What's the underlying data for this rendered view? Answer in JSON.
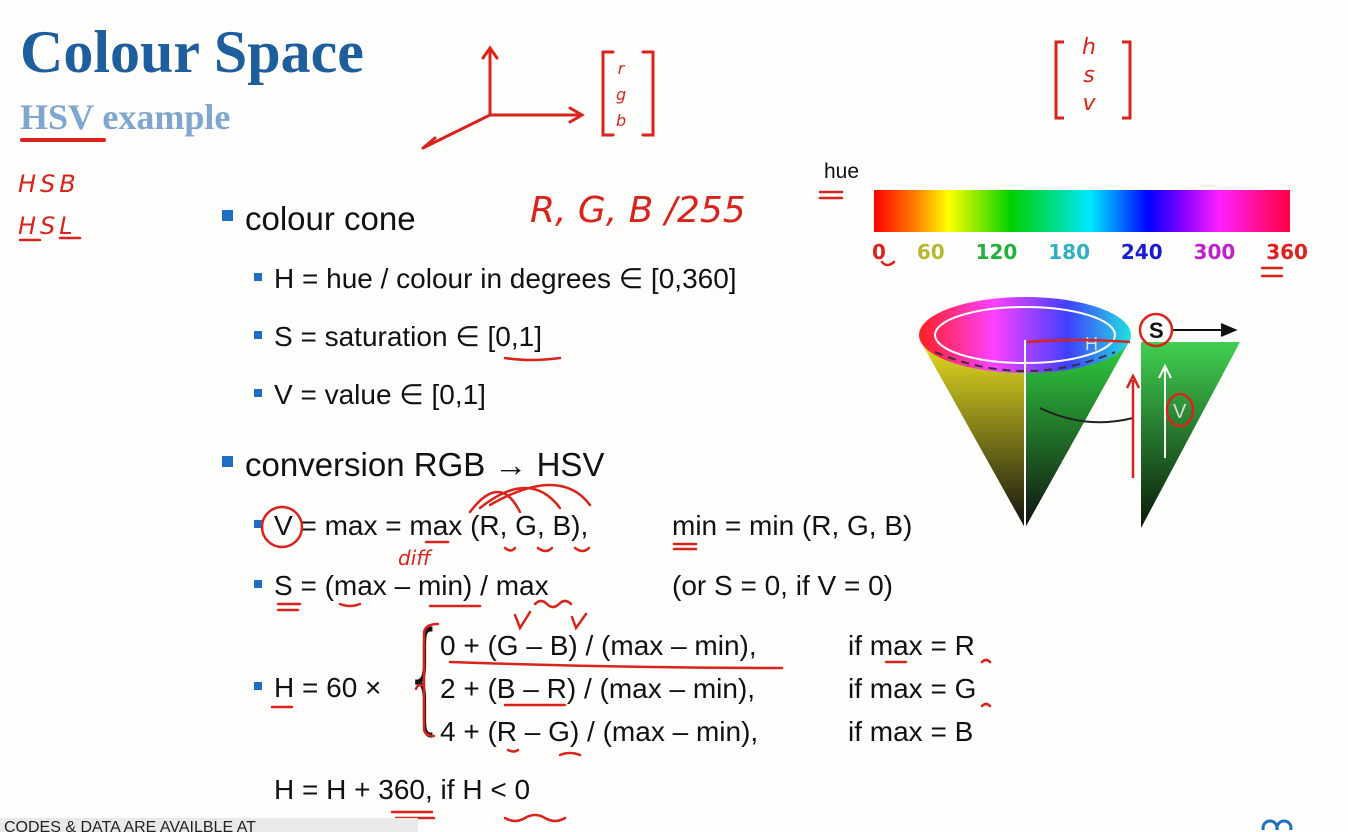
{
  "slide": {
    "title": "Colour Space",
    "subtitle": "HSV example",
    "bullets": {
      "cone": "colour cone",
      "h": "H = hue / colour in degrees ∈ [0,360]",
      "s": "S = saturation ∈ [0,1]",
      "v": "V = value ∈ [0,1]",
      "conversion": "conversion RGB → HSV",
      "v_formula": "V = max = max (R, G, B),",
      "min_formula": "min = min (R, G, B)",
      "s_formula": "S = (max – min) / max",
      "s_note": "(or  S = 0,  if  V = 0)",
      "h_prefix": "H = 60 ×",
      "h_cases": [
        {
          "expr": "0 + (G – B) / (max – min),",
          "cond": "if  max = R"
        },
        {
          "expr": "2 + (B – R) / (max – min),",
          "cond": "if  max = G"
        },
        {
          "expr": "4 + (R – G) / (max – min),",
          "cond": "if  max = B"
        }
      ],
      "h_wrap": "H = H + 360,  if  H < 0"
    },
    "hue_bar": {
      "label": "hue",
      "ticks": [
        {
          "label": "0",
          "color": "#e0201c"
        },
        {
          "label": "60",
          "color": "#b8b830"
        },
        {
          "label": "120",
          "color": "#22b040"
        },
        {
          "label": "180",
          "color": "#30b0c0"
        },
        {
          "label": "240",
          "color": "#1a1ad0"
        },
        {
          "label": "300",
          "color": "#c020d0"
        },
        {
          "label": "360",
          "color": "#e0201c"
        }
      ]
    },
    "cone_labels": {
      "h": "H",
      "s": "S",
      "v": "V"
    },
    "footer": "CODES & DATA ARE AVAILBLE AT"
  },
  "annotations": {
    "hsb": "HSB",
    "hsl": "HSL",
    "rgb_vec": [
      "r",
      "g",
      "b"
    ],
    "hsv_vec": [
      "h",
      "s",
      "v"
    ],
    "rgb_255": "R, G, B /255",
    "diff": "diff"
  },
  "colors": {
    "title": "#1f5e9c",
    "subtitle": "#7fa6cf",
    "bullet": "#1c6fc4",
    "ink": "#d8241c"
  }
}
